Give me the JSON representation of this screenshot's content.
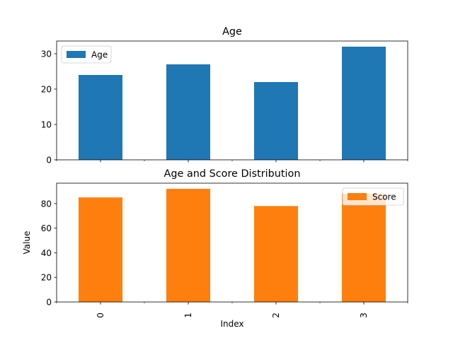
{
  "colors": {
    "age": "#1f77b4",
    "score": "#ff7f0e",
    "axis": "#000000",
    "background": "#ffffff"
  },
  "chart_data": [
    {
      "type": "bar",
      "title": "Age",
      "categories": [
        "0",
        "1",
        "2",
        "3"
      ],
      "series": [
        {
          "name": "Age",
          "values": [
            24,
            27,
            22,
            32
          ],
          "color": "#1f77b4"
        }
      ],
      "ylim": [
        0,
        33.6
      ],
      "yticks": [
        0,
        10,
        20,
        30
      ],
      "xlabel": "",
      "ylabel": "",
      "legend": "top-left",
      "grid": false,
      "show_xticklabels": false
    },
    {
      "type": "bar",
      "title": "Age and Score Distribution",
      "categories": [
        "0",
        "1",
        "2",
        "3"
      ],
      "series": [
        {
          "name": "Score",
          "values": [
            85,
            92,
            78,
            88
          ],
          "color": "#ff7f0e"
        }
      ],
      "ylim": [
        0,
        96.6
      ],
      "yticks": [
        0,
        20,
        40,
        60,
        80
      ],
      "xlabel": "Index",
      "ylabel": "Value",
      "legend": "top-right",
      "grid": false,
      "show_xticklabels": true
    }
  ]
}
